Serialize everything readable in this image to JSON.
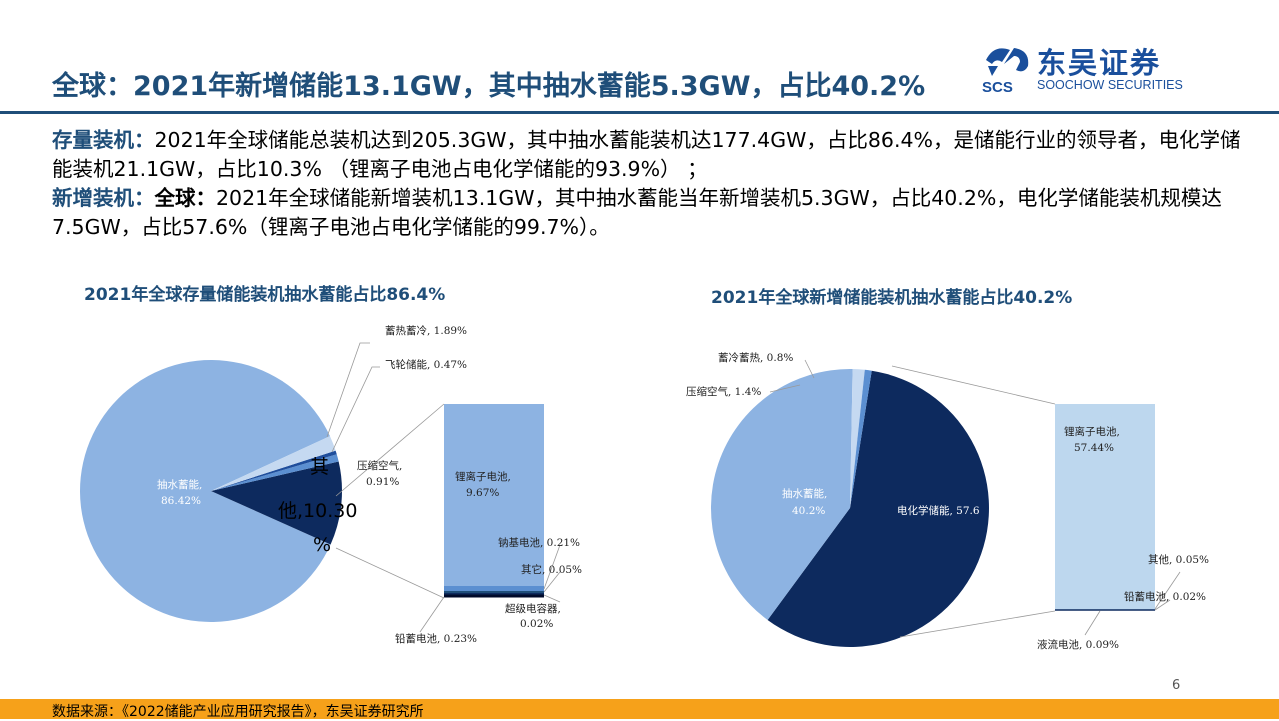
{
  "header": {
    "title": "全球：2021年新增储能13.1GW，其中抽水蓄能5.3GW，占比40.2%",
    "logo_cn": "东吴证券",
    "logo_en": "SOOCHOW SECURITIES",
    "logo_mark": "SCS"
  },
  "body": {
    "p1_label": "存量装机：",
    "p1_text": "2021年全球储能总装机达到205.3GW，其中抽水蓄能装机达177.4GW，占比86.4%，是储能行业的领导者，电化学储能装机21.1GW，占比10.3% （锂离子电池占电化学储能的93.9%） ；",
    "p2_label": "新增装机：",
    "p2_bold": "全球：",
    "p2_text": "2021年全球储能新增装机13.1GW，其中抽水蓄能当年新增装机5.3GW，占比40.2%，电化学储能装机规模达7.5GW，占比57.6%（锂离子电池占电化学储能的99.7%）。"
  },
  "colors": {
    "title_blue": "#1f4e79",
    "pie_light_blue": "#8db3e2",
    "pie_dark_navy": "#0d2a5e",
    "pie_pale": "#c5d9f1",
    "pie_mid_blue": "#5b8fd1",
    "bar_pale": "#bdd7ee",
    "footer_orange": "#f6a11a"
  },
  "chart_data": [
    {
      "type": "pie",
      "title": "2021年全球存量储能装机抽水蓄能占比86.4%",
      "slices": [
        {
          "name": "抽水蓄能",
          "value": 86.42,
          "label": "抽水蓄能,",
          "pct": "86.42%"
        },
        {
          "name": "其他",
          "value": 10.3,
          "label1": "其",
          "label2": "他,10.30",
          "label3": "%"
        },
        {
          "name": "压缩空气",
          "value": 0.91,
          "label": "压缩空气,",
          "pct": "0.91%"
        },
        {
          "name": "飞轮储能",
          "value": 0.47,
          "label": "飞轮储能, 0.47%"
        },
        {
          "name": "蓄热蓄冷",
          "value": 1.89,
          "label": "蓄热蓄冷, 1.89%"
        }
      ],
      "breakdown": [
        {
          "name": "锂离子电池",
          "value": 9.67,
          "label": "锂离子电池,",
          "pct": "9.67%"
        },
        {
          "name": "钠基电池",
          "value": 0.21,
          "label": "钠基电池, 0.21%"
        },
        {
          "name": "其它",
          "value": 0.05,
          "label": "其它, 0.05%"
        },
        {
          "name": "超级电容器",
          "value": 0.02,
          "label": "超级电容器,",
          "pct": "0.02%"
        },
        {
          "name": "铅蓄电池",
          "value": 0.23,
          "label": "铅蓄电池, 0.23%"
        }
      ]
    },
    {
      "type": "pie",
      "title": "2021年全球新增储能装机抽水蓄能占比40.2%",
      "slices": [
        {
          "name": "电化学储能",
          "value": 57.6,
          "label": "电化学储能, 57.6"
        },
        {
          "name": "抽水蓄能",
          "value": 40.2,
          "label": "抽水蓄能,",
          "pct": "40.2%"
        },
        {
          "name": "压缩空气",
          "value": 1.4,
          "label": "压缩空气, 1.4%"
        },
        {
          "name": "蓄冷蓄热",
          "value": 0.8,
          "label": "蓄冷蓄热, 0.8%"
        }
      ],
      "breakdown": [
        {
          "name": "锂离子电池",
          "value": 57.44,
          "label": "锂离子电池,",
          "pct": "57.44%"
        },
        {
          "name": "其他",
          "value": 0.05,
          "label": "其他, 0.05%"
        },
        {
          "name": "铅蓄电池",
          "value": 0.02,
          "label": "铅蓄电池, 0.02%"
        },
        {
          "name": "液流电池",
          "value": 0.09,
          "label": "液流电池, 0.09%"
        }
      ]
    }
  ],
  "footer": {
    "source": "数据来源：《2022储能产业应用研究报告》，东吴证券研究所",
    "page": "6"
  }
}
